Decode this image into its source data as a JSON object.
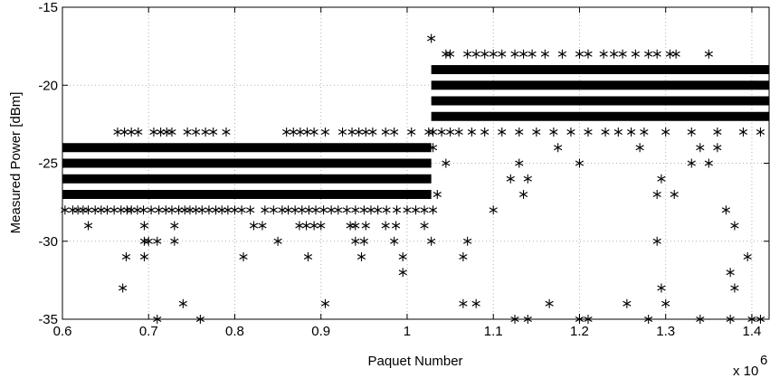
{
  "chart_data": {
    "type": "scatter",
    "title": "",
    "xlabel": "Paquet Number",
    "ylabel": "Measured Power [dBm]",
    "x_multiplier_label": "x 10",
    "x_multiplier_exponent": "6",
    "xlim": [
      0.6,
      1.42
    ],
    "ylim": [
      -35,
      -15
    ],
    "x_ticks": [
      0.6,
      0.7,
      0.8,
      0.9,
      1,
      1.1,
      1.2,
      1.3,
      1.4
    ],
    "x_tick_labels": [
      "0.6",
      "0.7",
      "0.8",
      "0.9",
      "1",
      "1.1",
      "1.2",
      "1.3",
      "1.4"
    ],
    "y_ticks": [
      -35,
      -30,
      -25,
      -20,
      -15
    ],
    "y_tick_labels": [
      "-35",
      "-30",
      "-25",
      "-20",
      "-15"
    ],
    "grid": true,
    "marker": "*",
    "color": "#000000",
    "dense_bands": [
      {
        "y": -25,
        "x_start": 0.6,
        "x_end": 1.028
      },
      {
        "y": -26,
        "x_start": 0.6,
        "x_end": 1.028
      },
      {
        "y": -27,
        "x_start": 0.6,
        "x_end": 1.028
      },
      {
        "y": -24,
        "x_start": 0.6,
        "x_end": 1.028
      },
      {
        "y": -20,
        "x_start": 1.028,
        "x_end": 1.42
      },
      {
        "y": -21,
        "x_start": 1.028,
        "x_end": 1.42
      },
      {
        "y": -19,
        "x_start": 1.028,
        "x_end": 1.42
      },
      {
        "y": -22,
        "x_start": 1.028,
        "x_end": 1.42
      }
    ],
    "points": [
      {
        "x": 0.603,
        "y": -28
      },
      {
        "x": 0.612,
        "y": -28
      },
      {
        "x": 0.618,
        "y": -28
      },
      {
        "x": 0.624,
        "y": -28
      },
      {
        "x": 0.63,
        "y": -28
      },
      {
        "x": 0.638,
        "y": -28
      },
      {
        "x": 0.645,
        "y": -28
      },
      {
        "x": 0.652,
        "y": -28
      },
      {
        "x": 0.66,
        "y": -28
      },
      {
        "x": 0.668,
        "y": -28
      },
      {
        "x": 0.675,
        "y": -28
      },
      {
        "x": 0.68,
        "y": -28
      },
      {
        "x": 0.687,
        "y": -28
      },
      {
        "x": 0.694,
        "y": -28
      },
      {
        "x": 0.703,
        "y": -28
      },
      {
        "x": 0.712,
        "y": -28
      },
      {
        "x": 0.72,
        "y": -28
      },
      {
        "x": 0.727,
        "y": -28
      },
      {
        "x": 0.735,
        "y": -28
      },
      {
        "x": 0.742,
        "y": -28
      },
      {
        "x": 0.748,
        "y": -28
      },
      {
        "x": 0.755,
        "y": -28
      },
      {
        "x": 0.762,
        "y": -28
      },
      {
        "x": 0.77,
        "y": -28
      },
      {
        "x": 0.778,
        "y": -28
      },
      {
        "x": 0.785,
        "y": -28
      },
      {
        "x": 0.792,
        "y": -28
      },
      {
        "x": 0.8,
        "y": -28
      },
      {
        "x": 0.808,
        "y": -28
      },
      {
        "x": 0.818,
        "y": -28
      },
      {
        "x": 0.835,
        "y": -28
      },
      {
        "x": 0.845,
        "y": -28
      },
      {
        "x": 0.855,
        "y": -28
      },
      {
        "x": 0.862,
        "y": -28
      },
      {
        "x": 0.87,
        "y": -28
      },
      {
        "x": 0.878,
        "y": -28
      },
      {
        "x": 0.886,
        "y": -28
      },
      {
        "x": 0.894,
        "y": -28
      },
      {
        "x": 0.903,
        "y": -28
      },
      {
        "x": 0.912,
        "y": -28
      },
      {
        "x": 0.92,
        "y": -28
      },
      {
        "x": 0.93,
        "y": -28
      },
      {
        "x": 0.94,
        "y": -28
      },
      {
        "x": 0.95,
        "y": -28
      },
      {
        "x": 0.958,
        "y": -28
      },
      {
        "x": 0.966,
        "y": -28
      },
      {
        "x": 0.976,
        "y": -28
      },
      {
        "x": 0.988,
        "y": -28
      },
      {
        "x": 1.0,
        "y": -28
      },
      {
        "x": 1.01,
        "y": -28
      },
      {
        "x": 1.02,
        "y": -28
      },
      {
        "x": 1.03,
        "y": -28
      },
      {
        "x": 0.664,
        "y": -23
      },
      {
        "x": 0.672,
        "y": -23
      },
      {
        "x": 0.68,
        "y": -23
      },
      {
        "x": 0.688,
        "y": -23
      },
      {
        "x": 0.706,
        "y": -23
      },
      {
        "x": 0.714,
        "y": -23
      },
      {
        "x": 0.721,
        "y": -23
      },
      {
        "x": 0.727,
        "y": -23
      },
      {
        "x": 0.745,
        "y": -23
      },
      {
        "x": 0.755,
        "y": -23
      },
      {
        "x": 0.766,
        "y": -23
      },
      {
        "x": 0.775,
        "y": -23
      },
      {
        "x": 0.79,
        "y": -23
      },
      {
        "x": 0.86,
        "y": -23
      },
      {
        "x": 0.868,
        "y": -23
      },
      {
        "x": 0.876,
        "y": -23
      },
      {
        "x": 0.884,
        "y": -23
      },
      {
        "x": 0.892,
        "y": -23
      },
      {
        "x": 0.905,
        "y": -23
      },
      {
        "x": 0.925,
        "y": -23
      },
      {
        "x": 0.936,
        "y": -23
      },
      {
        "x": 0.944,
        "y": -23
      },
      {
        "x": 0.952,
        "y": -23
      },
      {
        "x": 0.96,
        "y": -23
      },
      {
        "x": 0.975,
        "y": -23
      },
      {
        "x": 0.985,
        "y": -23
      },
      {
        "x": 1.005,
        "y": -23
      },
      {
        "x": 1.025,
        "y": -23
      },
      {
        "x": 0.63,
        "y": -29
      },
      {
        "x": 0.695,
        "y": -29
      },
      {
        "x": 0.73,
        "y": -29
      },
      {
        "x": 0.822,
        "y": -29
      },
      {
        "x": 0.832,
        "y": -29
      },
      {
        "x": 0.875,
        "y": -29
      },
      {
        "x": 0.883,
        "y": -29
      },
      {
        "x": 0.892,
        "y": -29
      },
      {
        "x": 0.9,
        "y": -29
      },
      {
        "x": 0.934,
        "y": -29
      },
      {
        "x": 0.94,
        "y": -29
      },
      {
        "x": 0.952,
        "y": -29
      },
      {
        "x": 0.975,
        "y": -29
      },
      {
        "x": 0.987,
        "y": -29
      },
      {
        "x": 1.02,
        "y": -29
      },
      {
        "x": 0.674,
        "y": -31
      },
      {
        "x": 0.695,
        "y": -31
      },
      {
        "x": 0.81,
        "y": -31
      },
      {
        "x": 0.885,
        "y": -31
      },
      {
        "x": 0.947,
        "y": -31
      },
      {
        "x": 0.995,
        "y": -31
      },
      {
        "x": 0.695,
        "y": -30
      },
      {
        "x": 0.7,
        "y": -30
      },
      {
        "x": 0.71,
        "y": -30
      },
      {
        "x": 0.73,
        "y": -30
      },
      {
        "x": 0.85,
        "y": -30
      },
      {
        "x": 0.94,
        "y": -30
      },
      {
        "x": 0.95,
        "y": -30
      },
      {
        "x": 0.985,
        "y": -30
      },
      {
        "x": 1.028,
        "y": -30
      },
      {
        "x": 0.67,
        "y": -33
      },
      {
        "x": 0.74,
        "y": -34
      },
      {
        "x": 0.905,
        "y": -34
      },
      {
        "x": 0.71,
        "y": -35
      },
      {
        "x": 0.76,
        "y": -35
      },
      {
        "x": 0.995,
        "y": -32
      },
      {
        "x": 1.028,
        "y": -17
      },
      {
        "x": 1.045,
        "y": -18
      },
      {
        "x": 1.05,
        "y": -18
      },
      {
        "x": 1.07,
        "y": -18
      },
      {
        "x": 1.08,
        "y": -18
      },
      {
        "x": 1.09,
        "y": -18
      },
      {
        "x": 1.1,
        "y": -18
      },
      {
        "x": 1.11,
        "y": -18
      },
      {
        "x": 1.125,
        "y": -18
      },
      {
        "x": 1.135,
        "y": -18
      },
      {
        "x": 1.145,
        "y": -18
      },
      {
        "x": 1.16,
        "y": -18
      },
      {
        "x": 1.18,
        "y": -18
      },
      {
        "x": 1.2,
        "y": -18
      },
      {
        "x": 1.21,
        "y": -18
      },
      {
        "x": 1.228,
        "y": -18
      },
      {
        "x": 1.24,
        "y": -18
      },
      {
        "x": 1.25,
        "y": -18
      },
      {
        "x": 1.265,
        "y": -18
      },
      {
        "x": 1.28,
        "y": -18
      },
      {
        "x": 1.29,
        "y": -18
      },
      {
        "x": 1.305,
        "y": -18
      },
      {
        "x": 1.312,
        "y": -18
      },
      {
        "x": 1.35,
        "y": -18
      },
      {
        "x": 1.03,
        "y": -23
      },
      {
        "x": 1.04,
        "y": -23
      },
      {
        "x": 1.05,
        "y": -23
      },
      {
        "x": 1.06,
        "y": -23
      },
      {
        "x": 1.075,
        "y": -23
      },
      {
        "x": 1.09,
        "y": -23
      },
      {
        "x": 1.11,
        "y": -23
      },
      {
        "x": 1.13,
        "y": -23
      },
      {
        "x": 1.15,
        "y": -23
      },
      {
        "x": 1.17,
        "y": -23
      },
      {
        "x": 1.19,
        "y": -23
      },
      {
        "x": 1.21,
        "y": -23
      },
      {
        "x": 1.23,
        "y": -23
      },
      {
        "x": 1.245,
        "y": -23
      },
      {
        "x": 1.26,
        "y": -23
      },
      {
        "x": 1.275,
        "y": -23
      },
      {
        "x": 1.3,
        "y": -23
      },
      {
        "x": 1.33,
        "y": -23
      },
      {
        "x": 1.36,
        "y": -23
      },
      {
        "x": 1.39,
        "y": -23
      },
      {
        "x": 1.41,
        "y": -23
      },
      {
        "x": 1.03,
        "y": -24
      },
      {
        "x": 1.175,
        "y": -24
      },
      {
        "x": 1.27,
        "y": -24
      },
      {
        "x": 1.34,
        "y": -24
      },
      {
        "x": 1.36,
        "y": -24
      },
      {
        "x": 1.045,
        "y": -25
      },
      {
        "x": 1.13,
        "y": -25
      },
      {
        "x": 1.2,
        "y": -25
      },
      {
        "x": 1.33,
        "y": -25
      },
      {
        "x": 1.35,
        "y": -25
      },
      {
        "x": 1.01,
        "y": -27
      },
      {
        "x": 1.035,
        "y": -27
      },
      {
        "x": 1.135,
        "y": -27
      },
      {
        "x": 1.29,
        "y": -27
      },
      {
        "x": 1.31,
        "y": -27
      },
      {
        "x": 1.12,
        "y": -26
      },
      {
        "x": 1.14,
        "y": -26
      },
      {
        "x": 1.295,
        "y": -26
      },
      {
        "x": 1.1,
        "y": -28
      },
      {
        "x": 1.37,
        "y": -28
      },
      {
        "x": 1.38,
        "y": -29
      },
      {
        "x": 1.07,
        "y": -30
      },
      {
        "x": 1.29,
        "y": -30
      },
      {
        "x": 1.065,
        "y": -31
      },
      {
        "x": 1.395,
        "y": -31
      },
      {
        "x": 1.375,
        "y": -32
      },
      {
        "x": 1.295,
        "y": -33
      },
      {
        "x": 1.38,
        "y": -33
      },
      {
        "x": 1.065,
        "y": -34
      },
      {
        "x": 1.08,
        "y": -34
      },
      {
        "x": 1.165,
        "y": -34
      },
      {
        "x": 1.255,
        "y": -34
      },
      {
        "x": 1.3,
        "y": -34
      },
      {
        "x": 1.125,
        "y": -35
      },
      {
        "x": 1.14,
        "y": -35
      },
      {
        "x": 1.2,
        "y": -35
      },
      {
        "x": 1.21,
        "y": -35
      },
      {
        "x": 1.28,
        "y": -35
      },
      {
        "x": 1.34,
        "y": -35
      },
      {
        "x": 1.375,
        "y": -35
      },
      {
        "x": 1.4,
        "y": -35
      },
      {
        "x": 1.41,
        "y": -35
      }
    ]
  }
}
